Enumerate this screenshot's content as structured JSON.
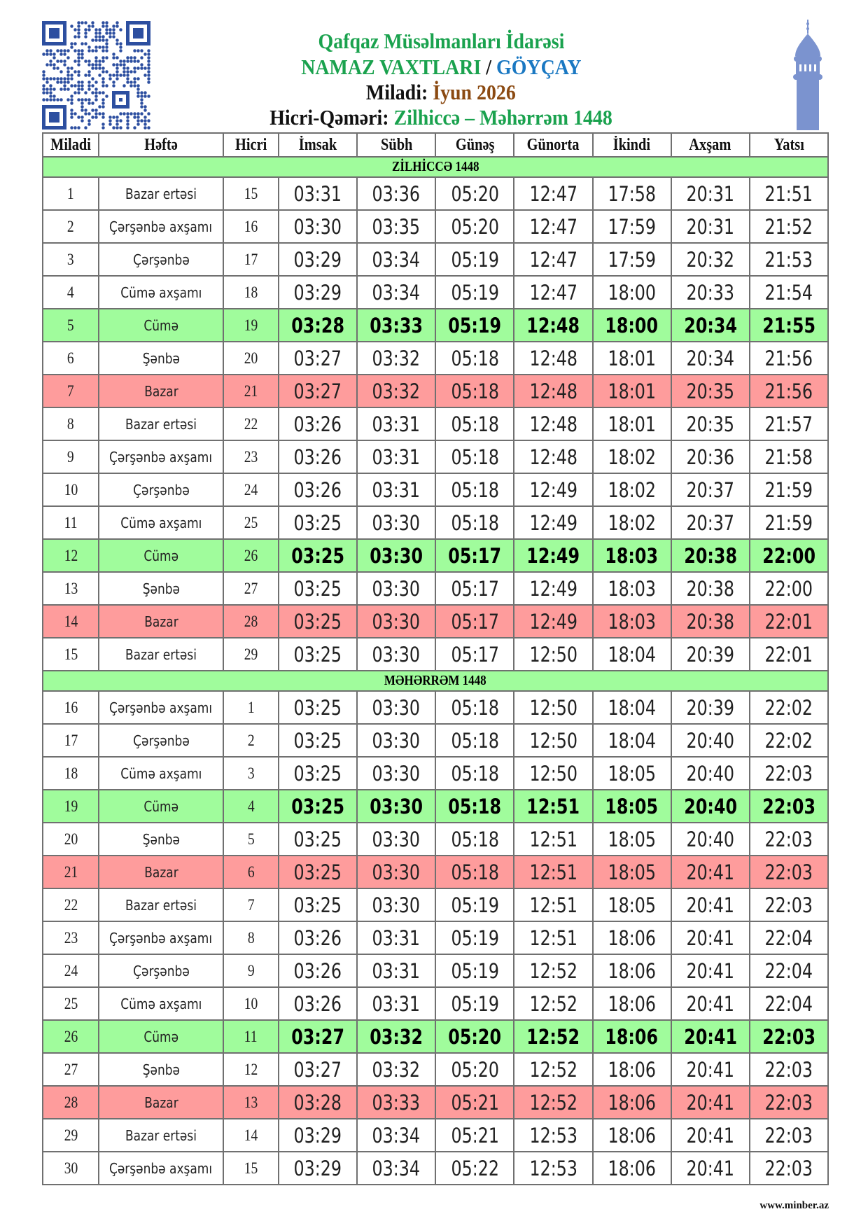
{
  "header": {
    "org": "Qafqaz Müsəlmanları İdarəsi",
    "title_prefix": "NAMAZ VAXTLARI",
    "separator": " / ",
    "city": "GÖYÇAY",
    "miladi_label": "Miladi:",
    "miladi_value": "İyun 2026",
    "hicri_label": "Hicri-Qəməri:",
    "hicri_value": "Zilhiccə – Məhərrəm 1448"
  },
  "colors": {
    "friday": "#a0fc9c",
    "sunday": "#fe9c9c",
    "green_text": "#1aa24e",
    "blue_text": "#1a78c2",
    "brown_text": "#8b4a12",
    "logo": "#2d4fa0",
    "minaret": "#7b93cf"
  },
  "icons": {
    "qr": "qr-code-icon",
    "minaret": "minaret-icon"
  },
  "columns": [
    "Miladi",
    "Həftə",
    "Hicri",
    "İmsak",
    "Sübh",
    "Günəş",
    "Günorta",
    "İkindi",
    "Axşam",
    "Yatsı"
  ],
  "sections": [
    {
      "title": "ZİLHİCCƏ 1448",
      "rows": [
        {
          "miladi": "1",
          "day": "Bazar ertəsi",
          "hicri": "15",
          "times": [
            "03:31",
            "03:36",
            "05:20",
            "12:47",
            "17:58",
            "20:31",
            "21:51"
          ],
          "type": "normal"
        },
        {
          "miladi": "2",
          "day": "Çərşənbə axşamı",
          "hicri": "16",
          "times": [
            "03:30",
            "03:35",
            "05:20",
            "12:47",
            "17:59",
            "20:31",
            "21:52"
          ],
          "type": "normal"
        },
        {
          "miladi": "3",
          "day": "Çərşənbə",
          "hicri": "17",
          "times": [
            "03:29",
            "03:34",
            "05:19",
            "12:47",
            "17:59",
            "20:32",
            "21:53"
          ],
          "type": "normal"
        },
        {
          "miladi": "4",
          "day": "Cümə axşamı",
          "hicri": "18",
          "times": [
            "03:29",
            "03:34",
            "05:19",
            "12:47",
            "18:00",
            "20:33",
            "21:54"
          ],
          "type": "normal"
        },
        {
          "miladi": "5",
          "day": "Cümə",
          "hicri": "19",
          "times": [
            "03:28",
            "03:33",
            "05:19",
            "12:48",
            "18:00",
            "20:34",
            "21:55"
          ],
          "type": "friday"
        },
        {
          "miladi": "6",
          "day": "Şənbə",
          "hicri": "20",
          "times": [
            "03:27",
            "03:32",
            "05:18",
            "12:48",
            "18:01",
            "20:34",
            "21:56"
          ],
          "type": "normal"
        },
        {
          "miladi": "7",
          "day": "Bazar",
          "hicri": "21",
          "times": [
            "03:27",
            "03:32",
            "05:18",
            "12:48",
            "18:01",
            "20:35",
            "21:56"
          ],
          "type": "sunday"
        },
        {
          "miladi": "8",
          "day": "Bazar ertəsi",
          "hicri": "22",
          "times": [
            "03:26",
            "03:31",
            "05:18",
            "12:48",
            "18:01",
            "20:35",
            "21:57"
          ],
          "type": "normal"
        },
        {
          "miladi": "9",
          "day": "Çərşənbə axşamı",
          "hicri": "23",
          "times": [
            "03:26",
            "03:31",
            "05:18",
            "12:48",
            "18:02",
            "20:36",
            "21:58"
          ],
          "type": "normal"
        },
        {
          "miladi": "10",
          "day": "Çərşənbə",
          "hicri": "24",
          "times": [
            "03:26",
            "03:31",
            "05:18",
            "12:49",
            "18:02",
            "20:37",
            "21:59"
          ],
          "type": "normal"
        },
        {
          "miladi": "11",
          "day": "Cümə axşamı",
          "hicri": "25",
          "times": [
            "03:25",
            "03:30",
            "05:18",
            "12:49",
            "18:02",
            "20:37",
            "21:59"
          ],
          "type": "normal"
        },
        {
          "miladi": "12",
          "day": "Cümə",
          "hicri": "26",
          "times": [
            "03:25",
            "03:30",
            "05:17",
            "12:49",
            "18:03",
            "20:38",
            "22:00"
          ],
          "type": "friday"
        },
        {
          "miladi": "13",
          "day": "Şənbə",
          "hicri": "27",
          "times": [
            "03:25",
            "03:30",
            "05:17",
            "12:49",
            "18:03",
            "20:38",
            "22:00"
          ],
          "type": "normal"
        },
        {
          "miladi": "14",
          "day": "Bazar",
          "hicri": "28",
          "times": [
            "03:25",
            "03:30",
            "05:17",
            "12:49",
            "18:03",
            "20:38",
            "22:01"
          ],
          "type": "sunday"
        },
        {
          "miladi": "15",
          "day": "Bazar ertəsi",
          "hicri": "29",
          "times": [
            "03:25",
            "03:30",
            "05:17",
            "12:50",
            "18:04",
            "20:39",
            "22:01"
          ],
          "type": "normal"
        }
      ]
    },
    {
      "title": "MƏHƏRRƏM 1448",
      "rows": [
        {
          "miladi": "16",
          "day": "Çərşənbə axşamı",
          "hicri": "1",
          "times": [
            "03:25",
            "03:30",
            "05:18",
            "12:50",
            "18:04",
            "20:39",
            "22:02"
          ],
          "type": "normal"
        },
        {
          "miladi": "17",
          "day": "Çərşənbə",
          "hicri": "2",
          "times": [
            "03:25",
            "03:30",
            "05:18",
            "12:50",
            "18:04",
            "20:40",
            "22:02"
          ],
          "type": "normal"
        },
        {
          "miladi": "18",
          "day": "Cümə axşamı",
          "hicri": "3",
          "times": [
            "03:25",
            "03:30",
            "05:18",
            "12:50",
            "18:05",
            "20:40",
            "22:03"
          ],
          "type": "normal"
        },
        {
          "miladi": "19",
          "day": "Cümə",
          "hicri": "4",
          "times": [
            "03:25",
            "03:30",
            "05:18",
            "12:51",
            "18:05",
            "20:40",
            "22:03"
          ],
          "type": "friday"
        },
        {
          "miladi": "20",
          "day": "Şənbə",
          "hicri": "5",
          "times": [
            "03:25",
            "03:30",
            "05:18",
            "12:51",
            "18:05",
            "20:40",
            "22:03"
          ],
          "type": "normal"
        },
        {
          "miladi": "21",
          "day": "Bazar",
          "hicri": "6",
          "times": [
            "03:25",
            "03:30",
            "05:18",
            "12:51",
            "18:05",
            "20:41",
            "22:03"
          ],
          "type": "sunday"
        },
        {
          "miladi": "22",
          "day": "Bazar ertəsi",
          "hicri": "7",
          "times": [
            "03:25",
            "03:30",
            "05:19",
            "12:51",
            "18:05",
            "20:41",
            "22:03"
          ],
          "type": "normal"
        },
        {
          "miladi": "23",
          "day": "Çərşənbə axşamı",
          "hicri": "8",
          "times": [
            "03:26",
            "03:31",
            "05:19",
            "12:51",
            "18:06",
            "20:41",
            "22:04"
          ],
          "type": "normal"
        },
        {
          "miladi": "24",
          "day": "Çərşənbə",
          "hicri": "9",
          "times": [
            "03:26",
            "03:31",
            "05:19",
            "12:52",
            "18:06",
            "20:41",
            "22:04"
          ],
          "type": "normal"
        },
        {
          "miladi": "25",
          "day": "Cümə axşamı",
          "hicri": "10",
          "times": [
            "03:26",
            "03:31",
            "05:19",
            "12:52",
            "18:06",
            "20:41",
            "22:04"
          ],
          "type": "normal"
        },
        {
          "miladi": "26",
          "day": "Cümə",
          "hicri": "11",
          "times": [
            "03:27",
            "03:32",
            "05:20",
            "12:52",
            "18:06",
            "20:41",
            "22:03"
          ],
          "type": "friday"
        },
        {
          "miladi": "27",
          "day": "Şənbə",
          "hicri": "12",
          "times": [
            "03:27",
            "03:32",
            "05:20",
            "12:52",
            "18:06",
            "20:41",
            "22:03"
          ],
          "type": "normal"
        },
        {
          "miladi": "28",
          "day": "Bazar",
          "hicri": "13",
          "times": [
            "03:28",
            "03:33",
            "05:21",
            "12:52",
            "18:06",
            "20:41",
            "22:03"
          ],
          "type": "sunday"
        },
        {
          "miladi": "29",
          "day": "Bazar ertəsi",
          "hicri": "14",
          "times": [
            "03:29",
            "03:34",
            "05:21",
            "12:53",
            "18:06",
            "20:41",
            "22:03"
          ],
          "type": "normal"
        },
        {
          "miladi": "30",
          "day": "Çərşənbə axşamı",
          "hicri": "15",
          "times": [
            "03:29",
            "03:34",
            "05:22",
            "12:53",
            "18:06",
            "20:41",
            "22:03"
          ],
          "type": "normal"
        }
      ]
    }
  ],
  "footer": {
    "website": "www.minber.az"
  }
}
